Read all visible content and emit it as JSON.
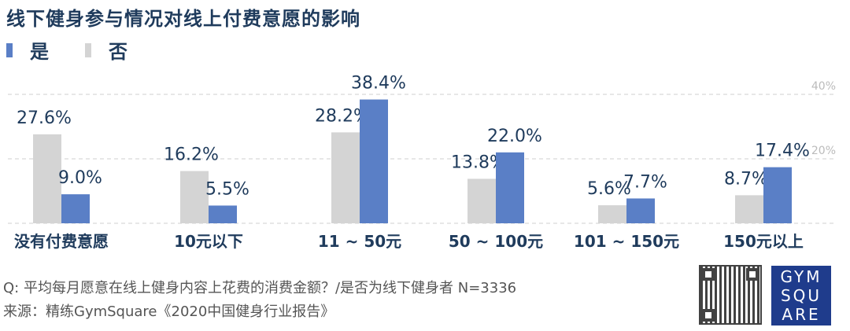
{
  "title": "线下健身参与情况对线上付费意愿的影响",
  "legend": [
    {
      "label": "是",
      "color": "#5a7fc6"
    },
    {
      "label": "否",
      "color": "#d4d4d4"
    }
  ],
  "chart_data": {
    "type": "bar",
    "categories": [
      "没有付费意愿",
      "10元以下",
      "11 ~ 50元",
      "50 ~ 100元",
      "101 ~ 150元",
      "150元以上"
    ],
    "series": [
      {
        "name": "否",
        "color": "#d4d4d4",
        "values": [
          27.6,
          16.2,
          28.2,
          13.8,
          5.6,
          8.7
        ],
        "labels": [
          "27.6%",
          "16.2%",
          "28.2%",
          "13.8%",
          "5.6%",
          "8.7%"
        ]
      },
      {
        "name": "是",
        "color": "#5a7fc6",
        "values": [
          9.0,
          5.5,
          38.4,
          22.0,
          7.7,
          17.4
        ],
        "labels": [
          "9.0%",
          "5.5%",
          "38.4%",
          "22.0%",
          "7.7%",
          "17.4%"
        ]
      }
    ],
    "ylim": [
      0,
      40
    ],
    "yticks": [
      {
        "value": 40,
        "label": "40%"
      },
      {
        "value": 20,
        "label": "20%"
      }
    ],
    "grid": true,
    "legend_position": "top-left"
  },
  "footer": {
    "question": "Q: 平均每月愿意在线上健身内容上花费的消费金额？/是否为线下健身者 N=3336",
    "source": "来源：精练GymSquare《2020中国健身行业报告》"
  },
  "logo": {
    "lines": [
      "GYM",
      "SQU",
      "ARE"
    ]
  }
}
